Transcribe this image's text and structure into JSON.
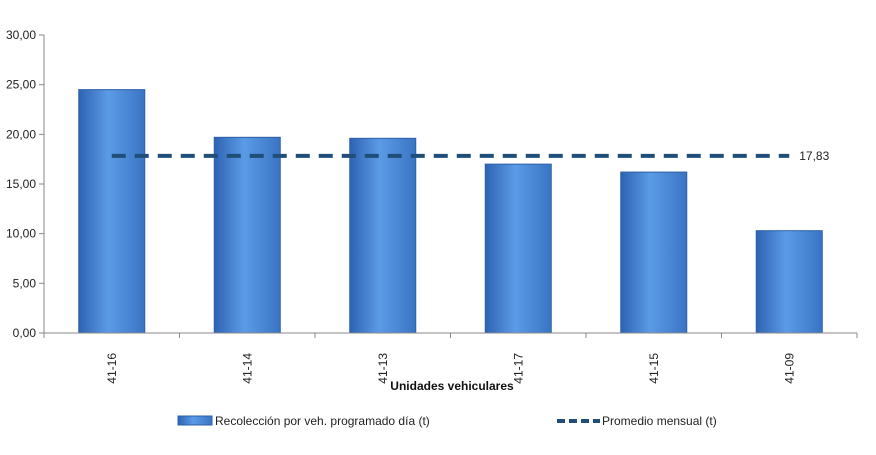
{
  "chart_data": {
    "type": "bar",
    "categories": [
      "41-16",
      "41-14",
      "41-13",
      "41-17",
      "41-15",
      "41-09"
    ],
    "series": [
      {
        "name": "Recolección por veh. programado día (t)",
        "type": "bar",
        "values": [
          24.5,
          19.7,
          19.6,
          17.0,
          16.2,
          10.3
        ]
      },
      {
        "name": "Promedio mensual (t)",
        "type": "line",
        "style": "dashed",
        "values": [
          17.83,
          17.83,
          17.83,
          17.83,
          17.83,
          17.83
        ]
      }
    ],
    "average_label": "17,83",
    "xlabel": "Unidades vehiculares",
    "ylabel": "",
    "ylim": [
      0,
      30
    ],
    "yticks": [
      "0,00",
      "5,00",
      "10,00",
      "15,00",
      "20,00",
      "25,00",
      "30,00"
    ],
    "grid": false,
    "legend_position": "bottom",
    "colors": {
      "bar": "#3f7fd4",
      "bar_dark": "#2d5fa8",
      "line": "#1f4e79",
      "axis": "#888888"
    }
  }
}
